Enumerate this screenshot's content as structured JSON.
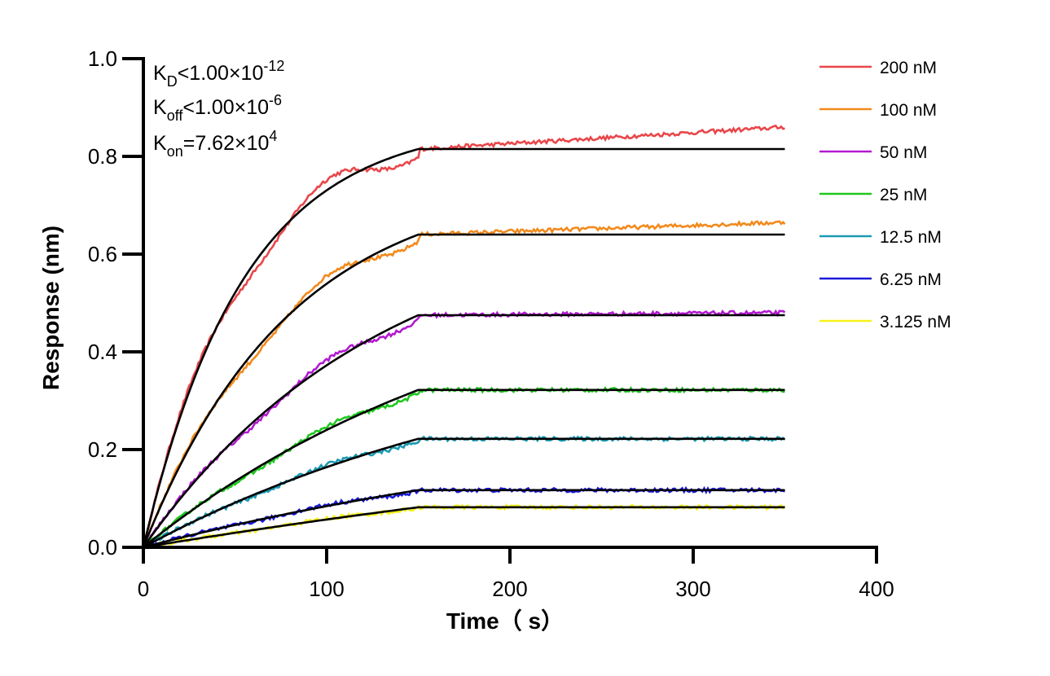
{
  "chart_data": {
    "type": "line",
    "xlabel": "Time（ s）",
    "ylabel": "Response (nm)",
    "xlim": [
      0,
      400
    ],
    "ylim": [
      0,
      1.0
    ],
    "xticks": [
      "0",
      "100",
      "200",
      "300",
      "400"
    ],
    "yticks": [
      "0.0",
      "0.2",
      "0.4",
      "0.6",
      "0.8",
      "1.0"
    ],
    "grid": false,
    "legend_position": "top-right",
    "annotations": {
      "kd": {
        "base": "K",
        "sub": "D",
        "rel": "<",
        "mant": "1.00×10",
        "exp": "-12"
      },
      "koff": {
        "base": "K",
        "sub": "off",
        "rel": "<",
        "mant": "1.00×10",
        "exp": "-6"
      },
      "kon": {
        "base": "K",
        "sub": "on",
        "rel": "=",
        "mant": "7.62×10",
        "exp": "4"
      }
    },
    "association_end": 150,
    "end_time": 350,
    "fit_color": "#000000",
    "series": [
      {
        "name": "200 nM",
        "color": "#e8474a",
        "plateau": 0.815,
        "tau": 55,
        "drift": 0.045,
        "noise": 0.004
      },
      {
        "name": "100 nM",
        "color": "#f28a1c",
        "plateau": 0.64,
        "tau": 80,
        "drift": 0.025,
        "noise": 0.004
      },
      {
        "name": "50 nM",
        "color": "#b319d1",
        "plateau": 0.475,
        "tau": 130,
        "drift": 0.005,
        "noise": 0.004
      },
      {
        "name": "25 nM",
        "color": "#1ec81e",
        "plateau": 0.322,
        "tau": 200,
        "drift": 0.0,
        "noise": 0.004
      },
      {
        "name": "12.5 nM",
        "color": "#1a9ab3",
        "plateau": 0.222,
        "tau": 220,
        "drift": 0.0,
        "noise": 0.004
      },
      {
        "name": "6.25 nM",
        "color": "#1a1ad9",
        "plateau": 0.117,
        "tau": 300,
        "drift": 0.0,
        "noise": 0.004
      },
      {
        "name": "3.125 nM",
        "color": "#f7f21a",
        "plateau": 0.082,
        "tau": 600,
        "drift": 0.0,
        "noise": 0.004
      }
    ]
  }
}
